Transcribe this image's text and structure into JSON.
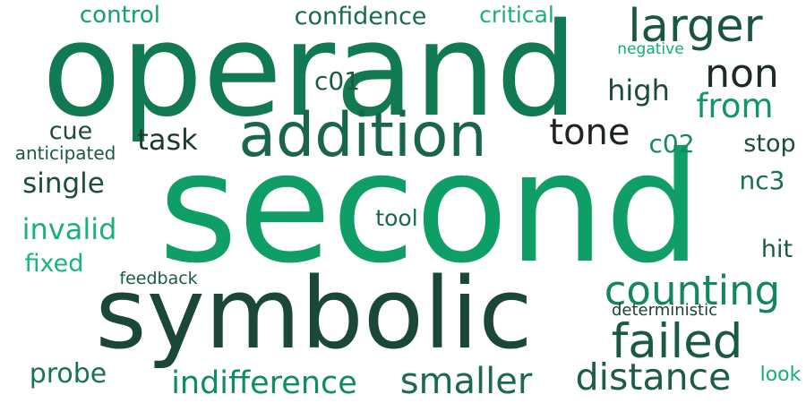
{
  "word_cloud": {
    "words": [
      {
        "text": "second",
        "color": "#0e9e66"
      },
      {
        "text": "operand",
        "color": "#127a53"
      },
      {
        "text": "symbolic",
        "color": "#1b4736"
      },
      {
        "text": "addition",
        "color": "#19664a"
      },
      {
        "text": "failed",
        "color": "#1a5a41"
      },
      {
        "text": "larger",
        "color": "#1a5540"
      },
      {
        "text": "non",
        "color": "#1d2b24"
      },
      {
        "text": "counting",
        "color": "#14865b"
      },
      {
        "text": "tone",
        "color": "#1d2421"
      },
      {
        "text": "distance",
        "color": "#1c5d46"
      },
      {
        "text": "smaller",
        "color": "#1c6a4b"
      },
      {
        "text": "from",
        "color": "#10966a"
      },
      {
        "text": "confidence",
        "color": "#186b4c"
      },
      {
        "text": "indifference",
        "color": "#0f8d60"
      },
      {
        "text": "control",
        "color": "#13a06a"
      },
      {
        "text": "critical",
        "color": "#17b07a"
      },
      {
        "text": "probe",
        "color": "#187550"
      },
      {
        "text": "invalid",
        "color": "#1ab07c"
      },
      {
        "text": "single",
        "color": "#1b4d39"
      },
      {
        "text": "high",
        "color": "#1b4a38"
      },
      {
        "text": "task",
        "color": "#1e3a2e"
      },
      {
        "text": "c01",
        "color": "#1c5a42"
      },
      {
        "text": "fixed",
        "color": "#18b47e"
      },
      {
        "text": "tool",
        "color": "#17684a"
      },
      {
        "text": "stop",
        "color": "#1c4d3a"
      },
      {
        "text": "c02",
        "color": "#148a61"
      },
      {
        "text": "cue",
        "color": "#1d4c3b"
      },
      {
        "text": "nc3",
        "color": "#15704f"
      },
      {
        "text": "hit",
        "color": "#1b5a44"
      },
      {
        "text": "anticipated",
        "color": "#1a5a42"
      },
      {
        "text": "negative",
        "color": "#12ab77"
      },
      {
        "text": "feedback",
        "color": "#1b5a42"
      },
      {
        "text": "deterministic",
        "color": "#1f4034"
      },
      {
        "text": "look",
        "color": "#12b078"
      }
    ]
  }
}
